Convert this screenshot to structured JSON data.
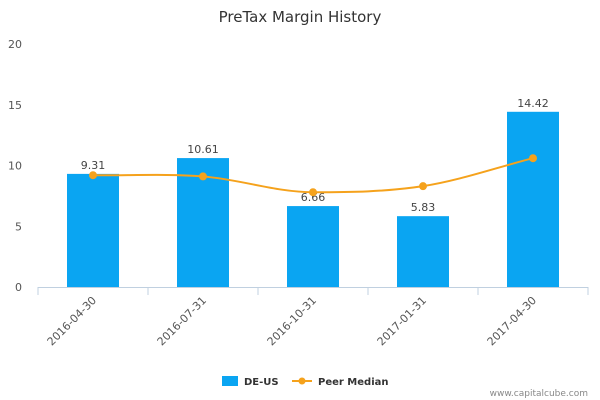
{
  "chart_data": {
    "type": "bar",
    "title": "PreTax Margin History",
    "categories": [
      "2016-04-30",
      "2016-07-31",
      "2016-10-31",
      "2017-01-31",
      "2017-04-30"
    ],
    "series": [
      {
        "name": "DE-US",
        "type": "bar",
        "values": [
          9.31,
          10.61,
          6.66,
          5.83,
          14.42
        ],
        "color": "#0aa5f2",
        "value_labels": [
          "9.31",
          "10.61",
          "6.66",
          "5.83",
          "14.42"
        ]
      },
      {
        "name": "Peer Median",
        "type": "line",
        "values": [
          9.2,
          9.1,
          7.8,
          8.3,
          10.6
        ],
        "color": "#f5a21c"
      }
    ],
    "ylim": [
      0,
      20
    ],
    "yticks": [
      0,
      5,
      10,
      15,
      20
    ],
    "grid": false,
    "legend_position": "bottom-center"
  },
  "credit": "www.capitalcube.com"
}
